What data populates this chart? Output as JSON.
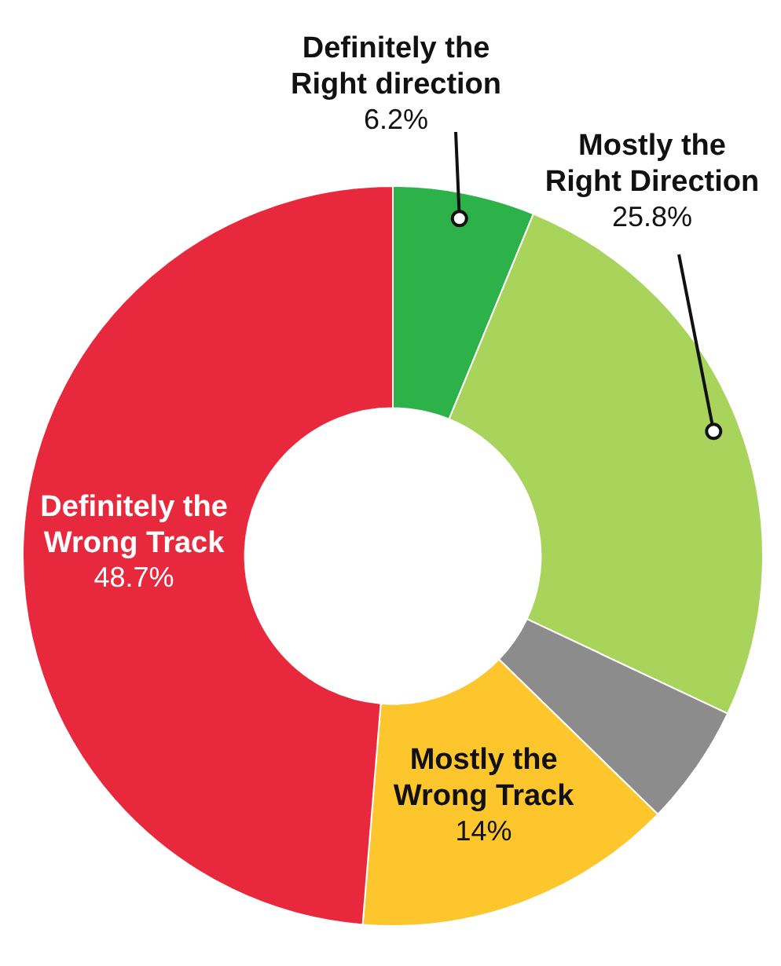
{
  "chart_data": {
    "type": "donut",
    "categories": [
      "Definitely the Right direction",
      "Mostly the Right Direction",
      null,
      "Mostly the Wrong Track",
      "Definitely the Wrong Track"
    ],
    "values": [
      6.2,
      25.8,
      5.3,
      14,
      48.7
    ],
    "value_labels": [
      "6.2%",
      "25.8%",
      null,
      "14%",
      "48.7%"
    ],
    "colors": [
      "#2db24a",
      "#a9d45c",
      "#8c8c8c",
      "#fcc62c",
      "#e8293d"
    ]
  }
}
